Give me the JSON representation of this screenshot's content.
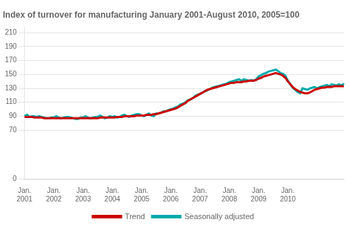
{
  "chart_data": {
    "type": "line",
    "title": "Index of turnover for manufacturing January 2001-August 2010, 2005=100",
    "categories": [
      "Jan.\n2001",
      null,
      null,
      null,
      null,
      null,
      null,
      null,
      null,
      null,
      null,
      null,
      "Jan.\n2002",
      null,
      null,
      null,
      null,
      null,
      null,
      null,
      null,
      null,
      null,
      null,
      "Jan.\n2003",
      null,
      null,
      null,
      null,
      null,
      null,
      null,
      null,
      null,
      null,
      null,
      "Jan.\n2004",
      null,
      null,
      null,
      null,
      null,
      null,
      null,
      null,
      null,
      null,
      null,
      "Jan.\n2005",
      null,
      null,
      null,
      null,
      null,
      null,
      null,
      null,
      null,
      null,
      null,
      "Jan.\n2006",
      null,
      null,
      null,
      null,
      null,
      null,
      null,
      null,
      null,
      null,
      null,
      "Jan.\n2007",
      null,
      null,
      null,
      null,
      null,
      null,
      null,
      null,
      null,
      null,
      null,
      "Jan.\n2008",
      null,
      null,
      null,
      null,
      null,
      null,
      null,
      null,
      null,
      null,
      null,
      "Jan.\n2009",
      null,
      null,
      null,
      null,
      null,
      null,
      null,
      null,
      null,
      null,
      null,
      "Jan.\n2010",
      null,
      null,
      null,
      null,
      null,
      null,
      null,
      null,
      null,
      null,
      null,
      null,
      null,
      null,
      null,
      null,
      null,
      null,
      null,
      null,
      null,
      null,
      null
    ],
    "series": [
      {
        "name": "Trend",
        "color": "#cc0000",
        "values": [
          89,
          89,
          89,
          89,
          88,
          88,
          88,
          88,
          87,
          87,
          87,
          87,
          87,
          87,
          87,
          87,
          87,
          87,
          87,
          87,
          87,
          87,
          87,
          87,
          87,
          87,
          87,
          87,
          87,
          87,
          87,
          88,
          88,
          88,
          88,
          88,
          88,
          88,
          89,
          89,
          89,
          90,
          90,
          90,
          90,
          90,
          91,
          91,
          91,
          91,
          92,
          92,
          92,
          93,
          93,
          94,
          95,
          96,
          97,
          98,
          99,
          100,
          101,
          103,
          105,
          107,
          109,
          112,
          114,
          116,
          118,
          120,
          122,
          124,
          126,
          128,
          129,
          130,
          131,
          132,
          133,
          134,
          135,
          136,
          137,
          138,
          138,
          139,
          139,
          139,
          140,
          140,
          141,
          141,
          141,
          142,
          144,
          145,
          147,
          148,
          149,
          150,
          151,
          152,
          151,
          150,
          148,
          145,
          140,
          136,
          132,
          129,
          127,
          125,
          124,
          123,
          123,
          124,
          126,
          128,
          129,
          130,
          131,
          131,
          132,
          132,
          132,
          133,
          133,
          133,
          133,
          133
        ]
      },
      {
        "name": "Seasonally adjusted",
        "color": "#00aaaa",
        "values": [
          90,
          92,
          89,
          90,
          90,
          89,
          90,
          89,
          88,
          87,
          87,
          88,
          88,
          90,
          88,
          87,
          88,
          89,
          89,
          88,
          87,
          86,
          86,
          88,
          88,
          90,
          88,
          87,
          88,
          89,
          89,
          91,
          89,
          87,
          88,
          90,
          89,
          90,
          88,
          89,
          91,
          92,
          90,
          89,
          91,
          92,
          93,
          93,
          91,
          90,
          92,
          94,
          91,
          90,
          94,
          94,
          95,
          97,
          97,
          99,
          100,
          101,
          103,
          104,
          107,
          108,
          110,
          113,
          114,
          116,
          119,
          121,
          122,
          124,
          126,
          127,
          129,
          131,
          132,
          133,
          134,
          135,
          136,
          137,
          139,
          140,
          141,
          142,
          143,
          141,
          143,
          142,
          141,
          142,
          141,
          143,
          147,
          149,
          151,
          152,
          154,
          155,
          156,
          157,
          155,
          152,
          151,
          148,
          141,
          136,
          131,
          128,
          125,
          123,
          130,
          129,
          128,
          130,
          131,
          132,
          130,
          132,
          133,
          134,
          135,
          133,
          136,
          135,
          134,
          136,
          134,
          137
        ]
      }
    ],
    "ylim": [
      0,
      218
    ],
    "yticks": [
      0,
      70,
      90,
      110,
      130,
      150,
      170,
      190,
      210
    ],
    "grid": true,
    "legend": "bottom"
  }
}
